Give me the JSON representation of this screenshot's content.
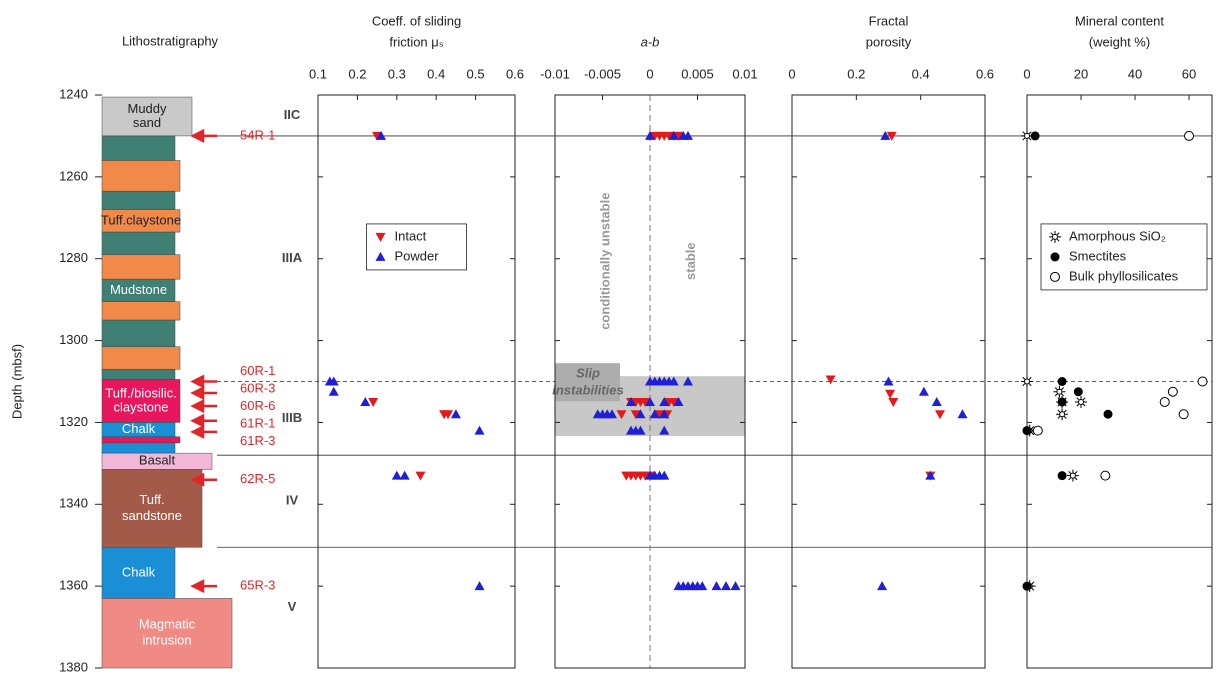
{
  "chart_data": [
    {
      "type": "column",
      "title": "Lithostratigraphy",
      "y_label": "Depth (mbsf)",
      "ylim": [
        1240,
        1380
      ],
      "yticks": [
        1240,
        1260,
        1280,
        1300,
        1320,
        1340,
        1360,
        1380
      ],
      "blocks": [
        {
          "top": 1240.5,
          "bottom": 1250,
          "color": "#c9c9c9",
          "label": [
            "Muddy",
            "sand"
          ]
        },
        {
          "top": 1250,
          "bottom": 1256,
          "color": "#3f7f74"
        },
        {
          "top": 1256,
          "bottom": 1263.5,
          "color": "#f0894a"
        },
        {
          "top": 1263.5,
          "bottom": 1268,
          "color": "#3f7f74"
        },
        {
          "top": 1268,
          "bottom": 1273.5,
          "color": "#f0894a",
          "label": [
            "Tuff.claystone"
          ]
        },
        {
          "top": 1273.5,
          "bottom": 1279,
          "color": "#3f7f74"
        },
        {
          "top": 1279,
          "bottom": 1285,
          "color": "#f0894a"
        },
        {
          "top": 1285,
          "bottom": 1290.5,
          "color": "#3f7f74",
          "label": [
            "Mudstone"
          ]
        },
        {
          "top": 1290.5,
          "bottom": 1295,
          "color": "#f0894a"
        },
        {
          "top": 1295,
          "bottom": 1301.5,
          "color": "#3f7f74"
        },
        {
          "top": 1301.5,
          "bottom": 1307,
          "color": "#f0894a"
        },
        {
          "top": 1307,
          "bottom": 1309.5,
          "color": "#3f7f74"
        },
        {
          "top": 1309.5,
          "bottom": 1320,
          "color": "#e8175d",
          "label": [
            "Tuff./biosilic.",
            "claystone"
          ]
        },
        {
          "top": 1320,
          "bottom": 1323.5,
          "color": "#1a8fd6",
          "label": [
            "Chalk"
          ]
        },
        {
          "top": 1323.5,
          "bottom": 1325,
          "color": "#e8175d"
        },
        {
          "top": 1325,
          "bottom": 1327.5,
          "color": "#1a8fd6"
        },
        {
          "top": 1327.5,
          "bottom": 1331.5,
          "color": "#f2b6d6",
          "label": [
            "Basalt"
          ]
        },
        {
          "top": 1331.5,
          "bottom": 1350.5,
          "color": "#a35a48",
          "label": [
            "Tuff.",
            "sandstone"
          ]
        },
        {
          "top": 1350.5,
          "bottom": 1363,
          "color": "#1a8fd6",
          "label": [
            "Chalk"
          ]
        },
        {
          "top": 1363,
          "bottom": 1380,
          "color": "#f08a84",
          "label": [
            "Magmatic",
            "intrusion"
          ]
        }
      ],
      "samples": [
        {
          "label": "54R-1",
          "depth": 1250
        },
        {
          "label": "60R-1",
          "depth": 1310
        },
        {
          "label": "60R-3",
          "depth": 1312.8
        },
        {
          "label": "60R-6",
          "depth": 1316
        },
        {
          "label": "61R-1",
          "depth": 1319.6
        },
        {
          "label": "61R-3",
          "depth": 1322.3
        },
        {
          "label": "62R-5",
          "depth": 1334
        },
        {
          "label": "65R-3",
          "depth": 1360
        }
      ],
      "horizons": [
        {
          "depth": 1250,
          "style": "solid"
        },
        {
          "depth": 1310,
          "style": "dashed"
        },
        {
          "depth": 1328,
          "style": "solid"
        },
        {
          "depth": 1350.5,
          "style": "solid"
        }
      ],
      "units": [
        "IIC",
        "IIIA",
        "IIIB",
        "IV",
        "V"
      ]
    },
    {
      "type": "scatter",
      "title": [
        "Coeff. of sliding",
        "friction μₛ"
      ],
      "xlim": [
        0.1,
        0.6
      ],
      "xticks": [
        0.1,
        0.2,
        0.3,
        0.4,
        0.5,
        0.6
      ],
      "legend": "upper-center",
      "series": [
        {
          "name": "Intact",
          "color": "#e31a1c",
          "marker": "triangle-down",
          "x": [
            0.25,
            0.24,
            0.42,
            0.43,
            0.36
          ],
          "y": [
            1250,
            1315,
            1318,
            1318,
            1333
          ]
        },
        {
          "name": "Powder",
          "color": "#1f1fd6",
          "marker": "triangle-up",
          "x": [
            0.26,
            0.13,
            0.14,
            0.14,
            0.22,
            0.45,
            0.51,
            0.3,
            0.32,
            0.51
          ],
          "y": [
            1250,
            1310,
            1310,
            1312.5,
            1315,
            1318,
            1322,
            1333,
            1333,
            1360
          ]
        }
      ]
    },
    {
      "type": "scatter",
      "title": [
        "a-b"
      ],
      "xlim": [
        -0.01,
        0.01
      ],
      "xticks": [
        -0.01,
        -0.005,
        0,
        0.005,
        0.01
      ],
      "reference_x": 0,
      "shade": {
        "from": 1308.7,
        "to": 1323.3
      },
      "annotations": {
        "left": "conditionally unstable",
        "right": "stable",
        "box": [
          "Slip",
          "instabilities"
        ]
      },
      "series": [
        {
          "name": "Intact",
          "color": "#e31a1c",
          "marker": "triangle-down",
          "x": [
            0.0005,
            0.001,
            0.0015,
            0.002,
            0.0025,
            0.003,
            -0.002,
            -0.0015,
            -0.001,
            -0.0005,
            0.002,
            0.0025,
            -0.003,
            -0.0015,
            0.001,
            0.0018,
            -0.0025,
            -0.002,
            -0.0015,
            -0.001,
            -0.0005,
            0
          ],
          "y": [
            1250,
            1250,
            1250,
            1250,
            1250,
            1250,
            1315,
            1315,
            1315,
            1315,
            1315,
            1315,
            1318,
            1318,
            1318,
            1318,
            1333,
            1333,
            1333,
            1333,
            1333,
            1333
          ]
        },
        {
          "name": "Powder",
          "color": "#1f1fd6",
          "marker": "triangle-up",
          "x": [
            0,
            0.0025,
            0.0035,
            0.004,
            0,
            0.0005,
            0.001,
            0.0015,
            0.002,
            0.0025,
            0.004,
            -0.002,
            0,
            0.0015,
            0.003,
            -0.0055,
            -0.005,
            -0.0045,
            -0.004,
            -0.001,
            0.0005,
            0.0015,
            -0.002,
            -0.0015,
            -0.001,
            0.0015,
            0,
            0.0005,
            0.001,
            0.0015,
            0.003,
            0.0035,
            0.004,
            0.0045,
            0.005,
            0.0055,
            0.007,
            0.008,
            0.009
          ],
          "y": [
            1250,
            1250,
            1250,
            1250,
            1310,
            1310,
            1310,
            1310,
            1310,
            1310,
            1310,
            1315,
            1315,
            1315,
            1315,
            1318,
            1318,
            1318,
            1318,
            1318,
            1318,
            1318,
            1322,
            1322,
            1322,
            1322,
            1333,
            1333,
            1333,
            1333,
            1360,
            1360,
            1360,
            1360,
            1360,
            1360,
            1360,
            1360,
            1360
          ]
        }
      ]
    },
    {
      "type": "scatter",
      "title": [
        "Fractal",
        "porosity"
      ],
      "xlim": [
        0,
        0.6
      ],
      "xticks": [
        0,
        0.2,
        0.4,
        0.6
      ],
      "series": [
        {
          "name": "Intact",
          "color": "#e31a1c",
          "marker": "triangle-down",
          "x": [
            0.31,
            0.12,
            0.305,
            0.315,
            0.46,
            0.43
          ],
          "y": [
            1250,
            1309.5,
            1313,
            1315,
            1318,
            1333
          ]
        },
        {
          "name": "Powder",
          "color": "#1f1fd6",
          "marker": "triangle-up",
          "x": [
            0.29,
            0.3,
            0.41,
            0.45,
            0.53,
            0.43,
            0.28
          ],
          "y": [
            1250,
            1310,
            1312.5,
            1315,
            1318,
            1333,
            1360
          ]
        }
      ]
    },
    {
      "type": "scatter",
      "title": [
        "Mineral content",
        "(weight %)"
      ],
      "xlim": [
        0,
        68.5
      ],
      "xticks": [
        0,
        20,
        40,
        60
      ],
      "legend": "upper-right",
      "series": [
        {
          "name": "Amorphous SiO₂",
          "color": "#000000",
          "marker": "star",
          "x": [
            0,
            0,
            12,
            13,
            20,
            13,
            1,
            17,
            1
          ],
          "y": [
            1250,
            1310,
            1312.5,
            1315,
            1315,
            1318,
            1322,
            1333,
            1360
          ]
        },
        {
          "name": "Smectites",
          "color": "#000000",
          "marker": "circle",
          "x": [
            3,
            13,
            19,
            13,
            30,
            0,
            13,
            0
          ],
          "y": [
            1250,
            1310,
            1312.5,
            1315,
            1318,
            1322,
            1333,
            1360
          ]
        },
        {
          "name": "Bulk phyllosilicates",
          "color": "#000000",
          "marker": "circle-open",
          "x": [
            60,
            65,
            54,
            51,
            58,
            4,
            29
          ],
          "y": [
            1250,
            1310,
            1312.5,
            1315,
            1318,
            1322,
            1333
          ]
        }
      ]
    }
  ]
}
